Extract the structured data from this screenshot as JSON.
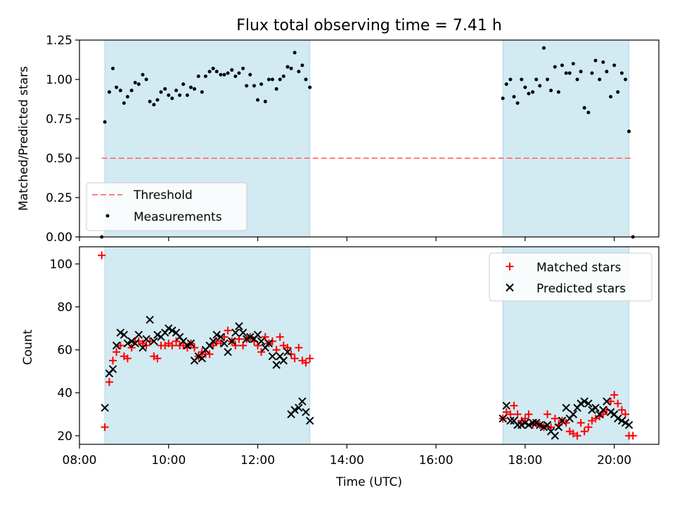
{
  "title": "Flux total observing time = 7.41 h",
  "colors": {
    "shade": "#add8e6",
    "threshold": "#ff7f7f",
    "measurement": "#000000",
    "matched": "#ff0000",
    "predicted": "#000000"
  },
  "chart_data": [
    {
      "type": "scatter",
      "panel": "top",
      "ylabel": "Matched/Predicted stars",
      "xlim": [
        8.0,
        21.0
      ],
      "ylim": [
        0.0,
        1.25
      ],
      "yticks": [
        0.0,
        0.25,
        0.5,
        0.75,
        1.0,
        1.25
      ],
      "ytick_labels": [
        "0.00",
        "0.25",
        "0.50",
        "0.75",
        "1.00",
        "1.25"
      ],
      "xticks": [
        8,
        10,
        12,
        14,
        16,
        18,
        20
      ],
      "observing_windows": [
        [
          8.57,
          13.17
        ],
        [
          17.5,
          20.33
        ]
      ],
      "legend": {
        "placement": "lower-left",
        "entries": [
          "Threshold",
          "Measurements"
        ]
      },
      "threshold": {
        "name": "Threshold",
        "y": 0.5,
        "x_range": [
          8.5,
          20.42
        ]
      },
      "series": [
        {
          "name": "Measurements",
          "x": [
            8.5,
            8.57,
            8.67,
            8.75,
            8.83,
            8.92,
            9.0,
            9.08,
            9.17,
            9.25,
            9.33,
            9.42,
            9.5,
            9.58,
            9.67,
            9.75,
            9.83,
            9.92,
            10.0,
            10.08,
            10.17,
            10.25,
            10.33,
            10.42,
            10.5,
            10.58,
            10.67,
            10.75,
            10.83,
            10.92,
            11.0,
            11.08,
            11.17,
            11.25,
            11.33,
            11.42,
            11.5,
            11.58,
            11.67,
            11.75,
            11.83,
            11.92,
            12.0,
            12.08,
            12.17,
            12.25,
            12.33,
            12.42,
            12.5,
            12.58,
            12.67,
            12.75,
            12.83,
            12.92,
            13.0,
            13.08,
            13.17,
            17.5,
            17.58,
            17.67,
            17.75,
            17.83,
            17.92,
            18.0,
            18.08,
            18.17,
            18.25,
            18.33,
            18.42,
            18.5,
            18.58,
            18.67,
            18.75,
            18.83,
            18.92,
            19.0,
            19.08,
            19.17,
            19.25,
            19.33,
            19.42,
            19.5,
            19.58,
            19.67,
            19.75,
            19.83,
            19.92,
            20.0,
            20.08,
            20.17,
            20.25,
            20.33,
            20.42
          ],
          "y": [
            0.0,
            0.73,
            0.92,
            1.07,
            0.95,
            0.93,
            0.85,
            0.89,
            0.93,
            0.98,
            0.97,
            1.03,
            1.0,
            0.86,
            0.84,
            0.87,
            0.92,
            0.94,
            0.9,
            0.88,
            0.93,
            0.9,
            0.97,
            0.9,
            0.95,
            0.94,
            1.02,
            0.92,
            1.02,
            1.05,
            1.07,
            1.05,
            1.03,
            1.03,
            1.04,
            1.06,
            1.02,
            1.04,
            1.07,
            0.96,
            1.03,
            0.96,
            0.87,
            0.97,
            0.86,
            1.0,
            1.0,
            0.94,
            1.0,
            1.02,
            1.08,
            1.07,
            1.17,
            1.05,
            1.09,
            1.0,
            0.95,
            0.88,
            0.97,
            1.0,
            0.89,
            0.85,
            1.0,
            0.95,
            0.91,
            0.92,
            1.0,
            0.96,
            1.2,
            1.0,
            0.93,
            1.08,
            0.92,
            1.09,
            1.04,
            1.04,
            1.1,
            1.0,
            1.05,
            0.82,
            0.79,
            1.04,
            1.12,
            1.0,
            1.11,
            1.05,
            0.89,
            1.09,
            0.92,
            1.04,
            1.0,
            0.67,
            0.0
          ]
        }
      ]
    },
    {
      "type": "scatter",
      "panel": "bottom",
      "xlabel": "Time (UTC)",
      "ylabel": "Count",
      "xlim": [
        8.0,
        21.0
      ],
      "ylim": [
        16,
        108
      ],
      "yticks": [
        20,
        40,
        60,
        80,
        100
      ],
      "ytick_labels": [
        "20",
        "40",
        "60",
        "80",
        "100"
      ],
      "xticks": [
        8,
        10,
        12,
        14,
        16,
        18,
        20
      ],
      "xtick_labels": [
        "08:00",
        "10:00",
        "12:00",
        "14:00",
        "16:00",
        "18:00",
        "20:00"
      ],
      "observing_windows": [
        [
          8.57,
          13.17
        ],
        [
          17.5,
          20.33
        ]
      ],
      "legend": {
        "placement": "upper-right",
        "entries": [
          "Matched stars",
          "Predicted stars"
        ]
      },
      "series": [
        {
          "name": "Matched stars",
          "marker": "+",
          "x": [
            8.5,
            8.57,
            8.67,
            8.75,
            8.83,
            8.92,
            9.0,
            9.08,
            9.17,
            9.25,
            9.33,
            9.42,
            9.5,
            9.58,
            9.67,
            9.75,
            9.83,
            9.92,
            10.0,
            10.08,
            10.17,
            10.25,
            10.33,
            10.42,
            10.5,
            10.58,
            10.67,
            10.75,
            10.83,
            10.92,
            11.0,
            11.08,
            11.17,
            11.25,
            11.33,
            11.42,
            11.5,
            11.58,
            11.67,
            11.75,
            11.83,
            11.92,
            12.0,
            12.08,
            12.17,
            12.25,
            12.33,
            12.42,
            12.5,
            12.58,
            12.67,
            12.75,
            12.83,
            12.92,
            13.0,
            13.08,
            13.17,
            17.5,
            17.58,
            17.67,
            17.75,
            17.83,
            17.92,
            18.0,
            18.08,
            18.17,
            18.25,
            18.33,
            18.42,
            18.5,
            18.58,
            18.67,
            18.75,
            18.83,
            18.92,
            19.0,
            19.08,
            19.17,
            19.25,
            19.33,
            19.42,
            19.5,
            19.58,
            19.67,
            19.75,
            19.83,
            19.92,
            20.0,
            20.08,
            20.17,
            20.25,
            20.33,
            20.42
          ],
          "y": [
            104,
            24,
            45,
            55,
            59,
            62,
            57,
            56,
            61,
            64,
            64,
            63,
            62,
            64,
            57,
            56,
            62,
            62,
            63,
            62,
            64,
            62,
            62,
            61,
            63,
            61,
            57,
            59,
            58,
            58,
            62,
            64,
            63,
            66,
            69,
            64,
            62,
            65,
            62,
            65,
            66,
            64,
            62,
            59,
            66,
            63,
            64,
            60,
            66,
            62,
            61,
            58,
            56,
            61,
            55,
            54,
            56,
            28,
            31,
            30,
            34,
            30,
            27,
            28,
            30,
            25,
            26,
            25,
            24,
            30,
            24,
            28,
            25,
            27,
            26,
            22,
            21,
            20,
            26,
            22,
            24,
            27,
            28,
            29,
            30,
            32,
            36,
            39,
            35,
            32,
            30,
            20,
            20
          ]
        },
        {
          "name": "Predicted stars",
          "marker": "x",
          "x": [
            8.57,
            8.67,
            8.75,
            8.83,
            8.92,
            9.0,
            9.08,
            9.17,
            9.25,
            9.33,
            9.42,
            9.5,
            9.58,
            9.67,
            9.75,
            9.83,
            9.92,
            10.0,
            10.08,
            10.17,
            10.25,
            10.33,
            10.42,
            10.5,
            10.58,
            10.67,
            10.75,
            10.83,
            10.92,
            11.0,
            11.08,
            11.17,
            11.25,
            11.33,
            11.42,
            11.5,
            11.58,
            11.67,
            11.75,
            11.83,
            11.92,
            12.0,
            12.08,
            12.17,
            12.25,
            12.33,
            12.42,
            12.5,
            12.58,
            12.67,
            12.75,
            12.83,
            12.92,
            13.0,
            13.08,
            13.17,
            17.5,
            17.58,
            17.67,
            17.75,
            17.83,
            17.92,
            18.0,
            18.08,
            18.17,
            18.25,
            18.33,
            18.42,
            18.5,
            18.58,
            18.67,
            18.75,
            18.83,
            18.92,
            19.0,
            19.08,
            19.17,
            19.25,
            19.33,
            19.42,
            19.5,
            19.58,
            19.67,
            19.75,
            19.83,
            19.92,
            20.0,
            20.08,
            20.17,
            20.25,
            20.33
          ],
          "y": [
            33,
            49,
            51,
            62,
            68,
            67,
            63,
            64,
            63,
            67,
            61,
            65,
            74,
            64,
            67,
            66,
            68,
            70,
            69,
            68,
            66,
            64,
            62,
            63,
            55,
            57,
            56,
            60,
            62,
            64,
            67,
            66,
            63,
            59,
            64,
            68,
            71,
            68,
            65,
            66,
            65,
            67,
            64,
            61,
            63,
            57,
            53,
            57,
            55,
            59,
            30,
            32,
            33,
            36,
            31,
            27,
            28,
            34,
            27,
            27,
            25,
            25,
            26,
            25,
            26,
            26,
            25,
            24,
            25,
            22,
            20,
            24,
            27,
            33,
            28,
            30,
            33,
            35,
            36,
            35,
            32,
            33,
            30,
            32,
            36,
            31,
            30,
            28,
            27,
            26,
            25
          ]
        }
      ]
    }
  ]
}
